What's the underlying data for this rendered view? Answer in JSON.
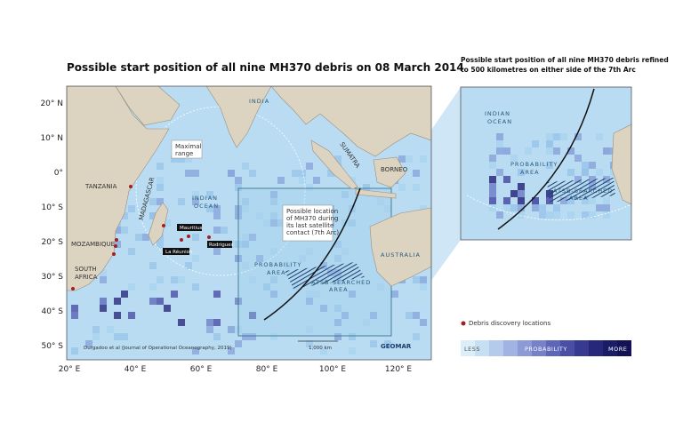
{
  "title": "Possible start position of all nine MH370 debris on 08 March 2014",
  "inset_title": [
    "Possible start position of all nine MH370 debris refined",
    "to 500 kilometres on either side of the 7th Arc"
  ],
  "lat_labels": [
    "20° N",
    "10° N",
    "0°",
    "10° S",
    "20° S",
    "30° S",
    "40° S",
    "50° S"
  ],
  "lon_labels": [
    "20° E",
    "40° E",
    "60° E",
    "80° E",
    "100° E",
    "120° E"
  ],
  "places": {
    "india": "INDIA",
    "tanzania": "TANZANIA",
    "mozambique": "MOZAMBIQUE",
    "south_africa": [
      "SOUTH",
      "AFRICA"
    ],
    "madagascar": "MADAGASCAR",
    "indian_ocean": [
      "INDIAN",
      "OCEAN"
    ],
    "sumatra": "SUMATRA",
    "borneo": "BORNEO",
    "australia": "AUSTRALIA",
    "mauritius": "Mauritius",
    "reunion": "La Réunion",
    "rodrigues": "Rodrigues",
    "probability_area": [
      "PROBABILITY",
      "AREA"
    ],
    "atsb_area": [
      "ATSB-SEARCHED",
      "AREA"
    ]
  },
  "callouts": {
    "range": [
      "Maximal",
      "range"
    ],
    "arc": [
      "Possible location",
      "of MH370 during",
      "its last satellite",
      "contact (7th Arc)"
    ]
  },
  "source": "Durgadoo et al (Journal of Operational Oceanography, 2019)",
  "scale": "1,000 km",
  "logo": "GEOMAR",
  "inset": {
    "indian_ocean": [
      "INDIAN",
      "OCEAN"
    ],
    "probability_area": [
      "PROBABILITY",
      "AREA"
    ],
    "atsb_area": [
      "ATSB-SEARCHED",
      "AREA"
    ]
  },
  "legend": {
    "debris": "Debris discovery locations",
    "less": "LESS",
    "probability": "PROBABILITY",
    "more": "MORE"
  }
}
